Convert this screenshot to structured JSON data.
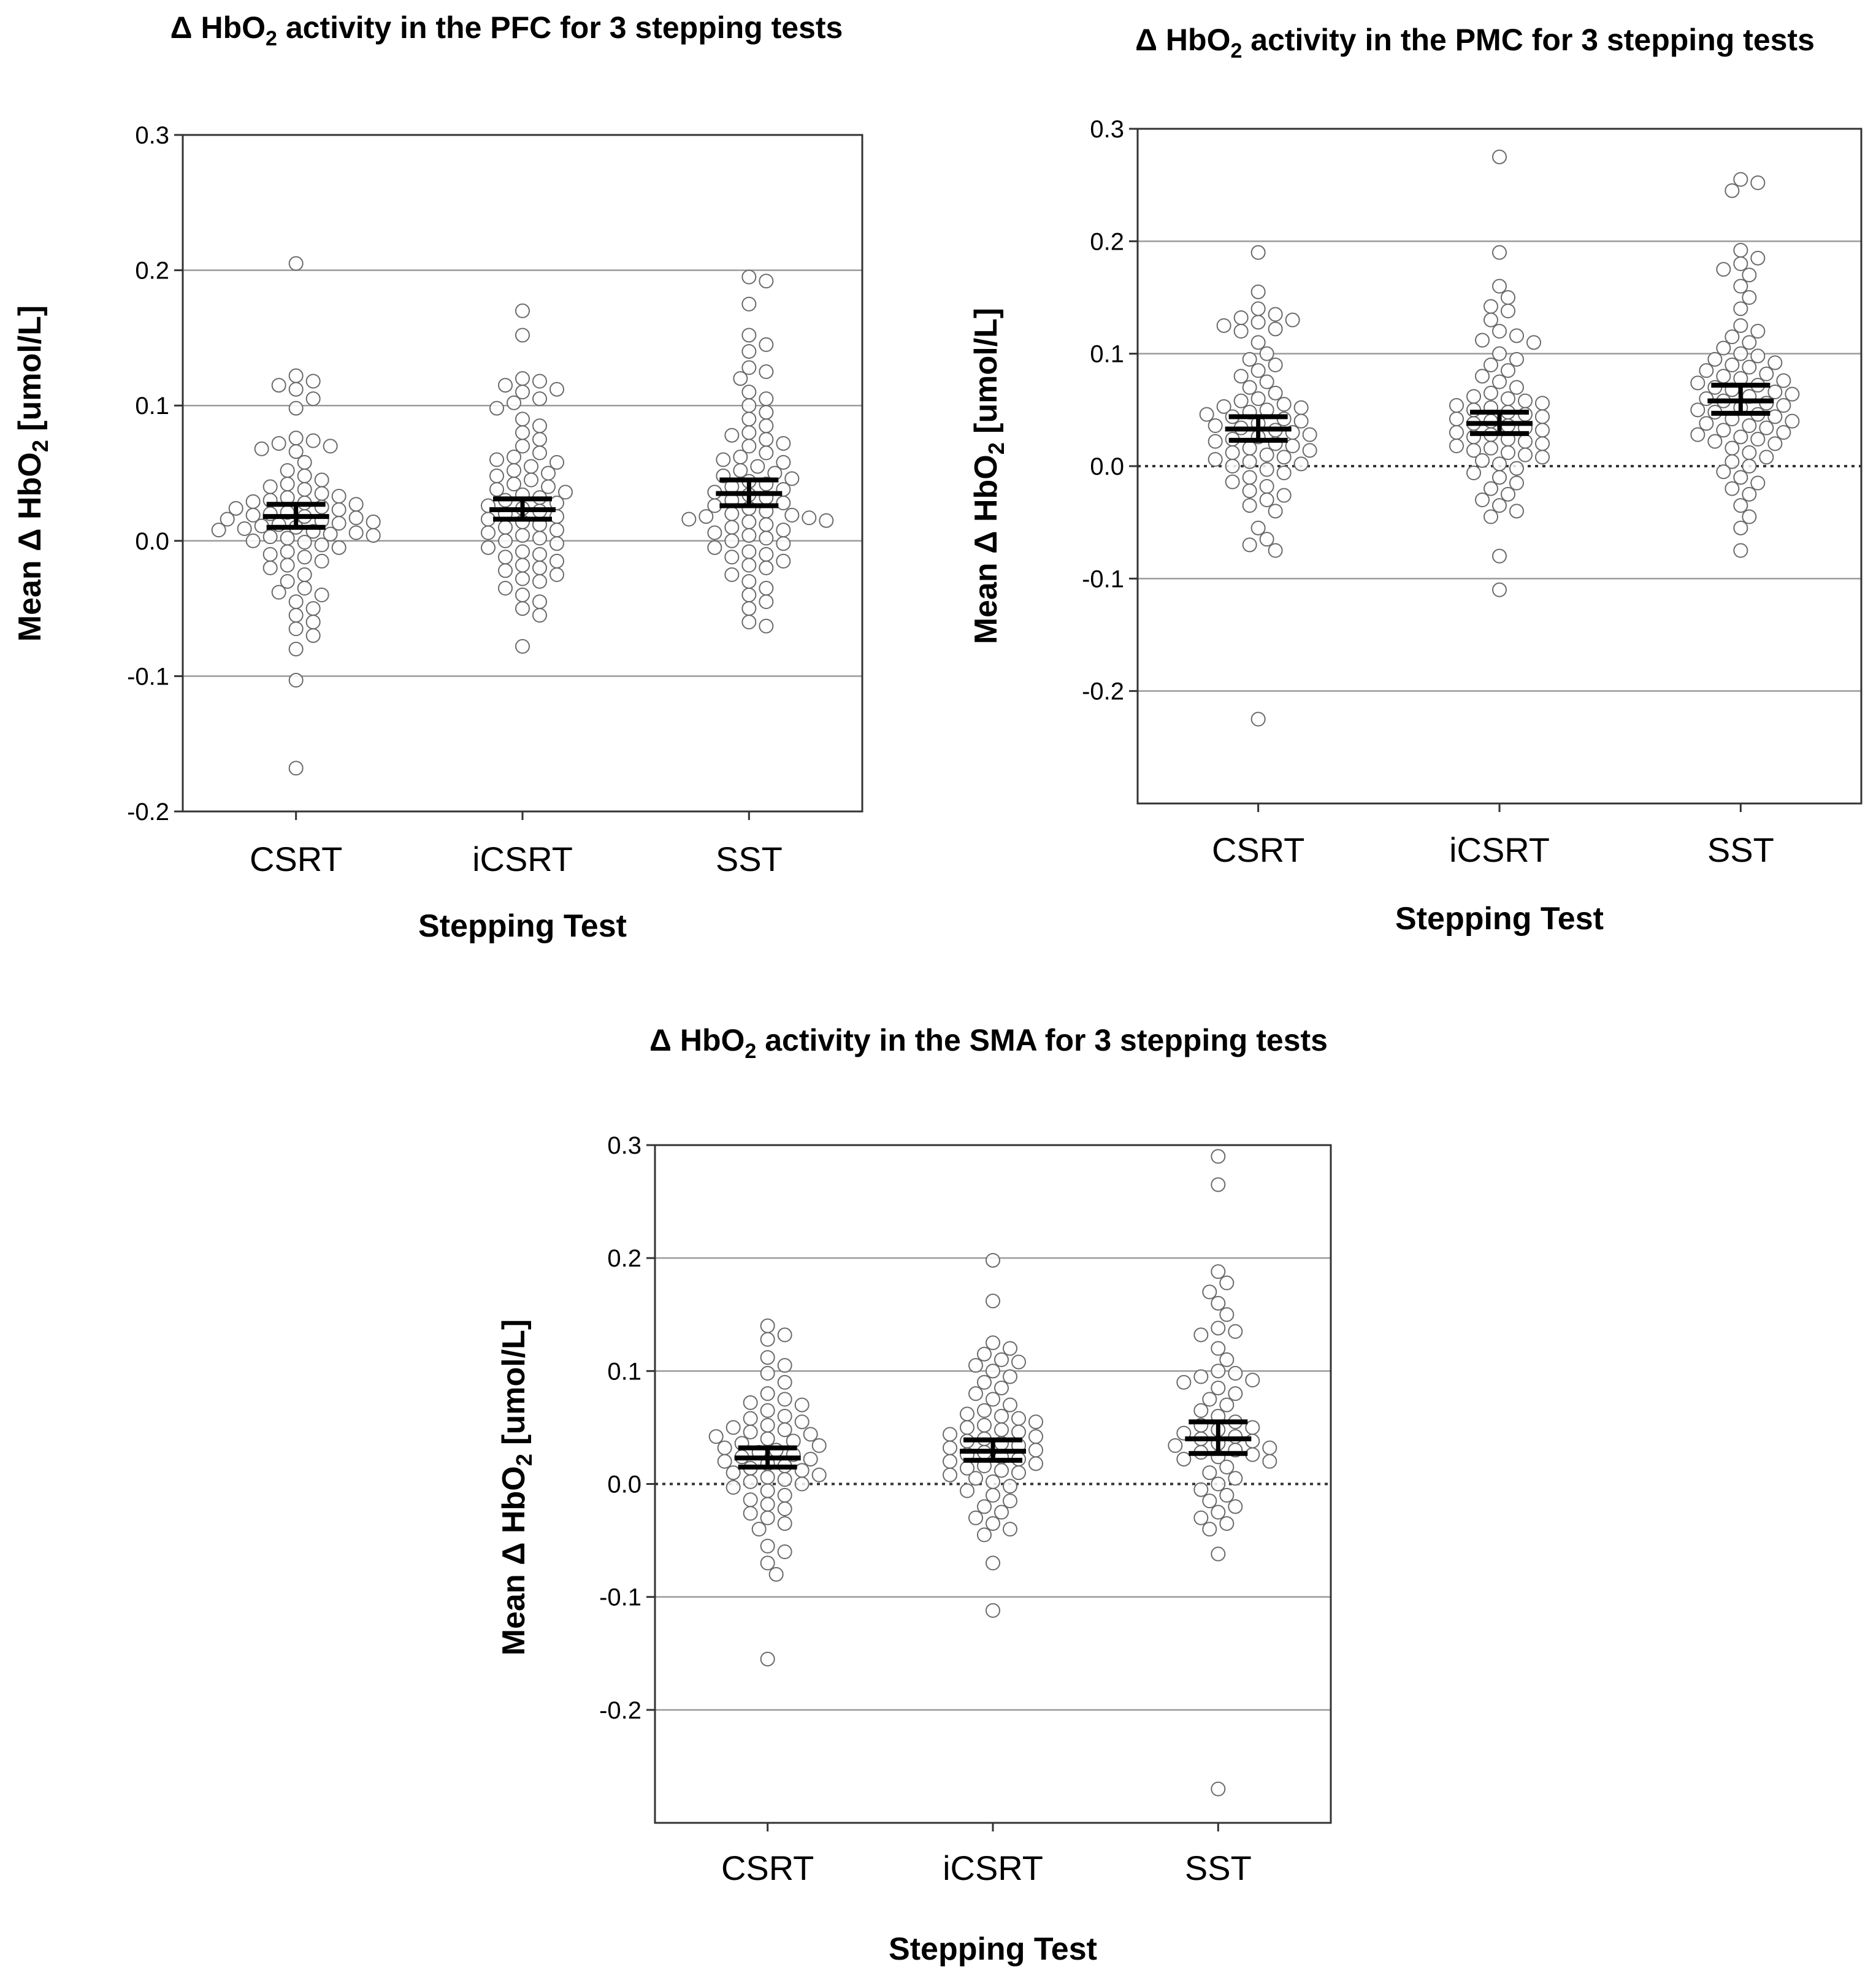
{
  "chart_data": [
    {
      "id": "pfc",
      "type": "scatter",
      "title": {
        "prefix": "Δ HbO",
        "sub": "2",
        "suffix": " activity in the PFC for 3 stepping tests"
      },
      "ylabel": {
        "prefix": "Mean Δ HbO",
        "sub": "2",
        "suffix": " [umol/L]"
      },
      "xlabel": "Stepping Test",
      "categories": [
        "CSRT",
        "iCSRT",
        "SST"
      ],
      "ylim": [
        -0.2,
        0.3
      ],
      "yticks": [
        -0.2,
        -0.1,
        0.0,
        0.1,
        0.2,
        0.3
      ],
      "ytick_labels": [
        "-0.2",
        "-0.1",
        "0.0",
        "0.1",
        "0.2",
        "0.3"
      ],
      "zero_line": "solid",
      "grid": true,
      "summary": [
        {
          "mean": 0.018,
          "ci": [
            0.01,
            0.027
          ]
        },
        {
          "mean": 0.023,
          "ci": [
            0.016,
            0.031
          ]
        },
        {
          "mean": 0.035,
          "ci": [
            0.026,
            0.045
          ]
        }
      ],
      "series": [
        {
          "name": "CSRT",
          "values": [
            0.205,
            0.122,
            0.118,
            0.115,
            0.112,
            0.105,
            0.098,
            0.076,
            0.074,
            0.072,
            0.07,
            0.068,
            0.066,
            0.058,
            0.052,
            0.048,
            0.045,
            0.042,
            0.04,
            0.038,
            0.035,
            0.033,
            0.032,
            0.03,
            0.029,
            0.028,
            0.027,
            0.025,
            0.024,
            0.023,
            0.021,
            0.02,
            0.019,
            0.018,
            0.017,
            0.016,
            0.015,
            0.014,
            0.013,
            0.012,
            0.011,
            0.01,
            0.009,
            0.008,
            0.007,
            0.006,
            0.005,
            0.004,
            0.003,
            0.002,
            0.0,
            -0.001,
            -0.003,
            -0.005,
            -0.008,
            -0.01,
            -0.012,
            -0.015,
            -0.018,
            -0.02,
            -0.025,
            -0.03,
            -0.035,
            -0.038,
            -0.04,
            -0.045,
            -0.05,
            -0.055,
            -0.06,
            -0.065,
            -0.07,
            -0.08,
            -0.103,
            -0.168
          ]
        },
        {
          "name": "iCSRT",
          "values": [
            0.17,
            0.152,
            0.12,
            0.118,
            0.115,
            0.112,
            0.11,
            0.105,
            0.102,
            0.098,
            0.09,
            0.085,
            0.08,
            0.075,
            0.07,
            0.065,
            0.062,
            0.06,
            0.058,
            0.055,
            0.052,
            0.05,
            0.048,
            0.045,
            0.042,
            0.04,
            0.038,
            0.036,
            0.034,
            0.032,
            0.03,
            0.028,
            0.026,
            0.024,
            0.022,
            0.02,
            0.018,
            0.016,
            0.014,
            0.012,
            0.01,
            0.008,
            0.006,
            0.004,
            0.002,
            0.0,
            -0.002,
            -0.005,
            -0.008,
            -0.01,
            -0.012,
            -0.015,
            -0.018,
            -0.02,
            -0.022,
            -0.025,
            -0.028,
            -0.03,
            -0.035,
            -0.04,
            -0.045,
            -0.05,
            -0.055,
            -0.078
          ]
        },
        {
          "name": "SST",
          "values": [
            0.195,
            0.192,
            0.175,
            0.152,
            0.145,
            0.14,
            0.128,
            0.125,
            0.12,
            0.11,
            0.105,
            0.1,
            0.095,
            0.09,
            0.085,
            0.08,
            0.078,
            0.075,
            0.072,
            0.07,
            0.065,
            0.062,
            0.06,
            0.058,
            0.055,
            0.052,
            0.05,
            0.048,
            0.046,
            0.044,
            0.042,
            0.04,
            0.038,
            0.036,
            0.034,
            0.032,
            0.03,
            0.028,
            0.026,
            0.024,
            0.022,
            0.02,
            0.019,
            0.018,
            0.017,
            0.016,
            0.015,
            0.014,
            0.012,
            0.01,
            0.008,
            0.006,
            0.004,
            0.002,
            0.0,
            -0.002,
            -0.005,
            -0.008,
            -0.01,
            -0.012,
            -0.015,
            -0.018,
            -0.02,
            -0.025,
            -0.03,
            -0.035,
            -0.04,
            -0.045,
            -0.05,
            -0.06,
            -0.063
          ]
        }
      ]
    },
    {
      "id": "pmc",
      "type": "scatter",
      "title": {
        "prefix": "Δ HbO",
        "sub": "2",
        "suffix": " activity in the PMC for 3 stepping tests"
      },
      "ylabel": {
        "prefix": "Mean Δ HbO",
        "sub": "2",
        "suffix": " [umol/L]"
      },
      "xlabel": "Stepping Test",
      "categories": [
        "CSRT",
        "iCSRT",
        "SST"
      ],
      "ylim": [
        -0.3,
        0.3
      ],
      "yticks": [
        -0.2,
        -0.1,
        0.0,
        0.1,
        0.2,
        0.3
      ],
      "ytick_labels": [
        "-0.2",
        "-0.1",
        "0.0",
        "0.1",
        "0.2",
        "0.3"
      ],
      "zero_line": "dotted",
      "grid": true,
      "summary": [
        {
          "mean": 0.033,
          "ci": [
            0.023,
            0.044
          ]
        },
        {
          "mean": 0.038,
          "ci": [
            0.029,
            0.048
          ]
        },
        {
          "mean": 0.058,
          "ci": [
            0.047,
            0.072
          ]
        }
      ],
      "series": [
        {
          "name": "CSRT",
          "values": [
            0.19,
            0.155,
            0.14,
            0.135,
            0.132,
            0.13,
            0.128,
            0.125,
            0.122,
            0.12,
            0.11,
            0.1,
            0.095,
            0.09,
            0.085,
            0.08,
            0.075,
            0.07,
            0.065,
            0.06,
            0.058,
            0.055,
            0.053,
            0.052,
            0.05,
            0.048,
            0.046,
            0.044,
            0.042,
            0.04,
            0.038,
            0.036,
            0.034,
            0.032,
            0.03,
            0.028,
            0.026,
            0.024,
            0.022,
            0.02,
            0.018,
            0.016,
            0.014,
            0.012,
            0.01,
            0.008,
            0.006,
            0.004,
            0.002,
            0.0,
            -0.003,
            -0.006,
            -0.01,
            -0.014,
            -0.018,
            -0.022,
            -0.026,
            -0.03,
            -0.035,
            -0.04,
            -0.055,
            -0.065,
            -0.07,
            -0.075,
            -0.225
          ]
        },
        {
          "name": "iCSRT",
          "values": [
            0.275,
            0.19,
            0.16,
            0.15,
            0.142,
            0.138,
            0.13,
            0.12,
            0.116,
            0.112,
            0.11,
            0.1,
            0.095,
            0.09,
            0.085,
            0.08,
            0.075,
            0.07,
            0.065,
            0.062,
            0.06,
            0.058,
            0.056,
            0.054,
            0.052,
            0.05,
            0.048,
            0.046,
            0.044,
            0.042,
            0.04,
            0.038,
            0.036,
            0.034,
            0.032,
            0.03,
            0.028,
            0.026,
            0.024,
            0.022,
            0.02,
            0.018,
            0.016,
            0.014,
            0.012,
            0.01,
            0.008,
            0.005,
            0.002,
            -0.002,
            -0.006,
            -0.01,
            -0.015,
            -0.02,
            -0.025,
            -0.03,
            -0.035,
            -0.04,
            -0.045,
            -0.08,
            -0.11
          ]
        },
        {
          "name": "SST",
          "values": [
            0.255,
            0.252,
            0.245,
            0.192,
            0.185,
            0.18,
            0.175,
            0.17,
            0.16,
            0.15,
            0.14,
            0.125,
            0.12,
            0.115,
            0.11,
            0.105,
            0.1,
            0.098,
            0.095,
            0.092,
            0.09,
            0.088,
            0.085,
            0.082,
            0.08,
            0.078,
            0.076,
            0.074,
            0.072,
            0.07,
            0.068,
            0.066,
            0.064,
            0.062,
            0.06,
            0.058,
            0.056,
            0.054,
            0.052,
            0.05,
            0.048,
            0.046,
            0.044,
            0.042,
            0.04,
            0.038,
            0.036,
            0.034,
            0.032,
            0.03,
            0.028,
            0.026,
            0.024,
            0.022,
            0.02,
            0.016,
            0.012,
            0.008,
            0.004,
            0.0,
            -0.005,
            -0.01,
            -0.015,
            -0.02,
            -0.025,
            -0.035,
            -0.045,
            -0.055,
            -0.075
          ]
        }
      ]
    },
    {
      "id": "sma",
      "type": "scatter",
      "title": {
        "prefix": "Δ HbO",
        "sub": "2",
        "suffix": " activity in the SMA for 3 stepping tests"
      },
      "ylabel": {
        "prefix": "Mean Δ HbO",
        "sub": "2",
        "suffix": " [umol/L]"
      },
      "xlabel": "Stepping Test",
      "categories": [
        "CSRT",
        "iCSRT",
        "SST"
      ],
      "ylim": [
        -0.3,
        0.3
      ],
      "yticks": [
        -0.2,
        -0.1,
        0.0,
        0.1,
        0.2,
        0.3
      ],
      "ytick_labels": [
        "-0.2",
        "-0.1",
        "0.0",
        "0.1",
        "0.2",
        "0.3"
      ],
      "zero_line": "dotted",
      "grid": true,
      "summary": [
        {
          "mean": 0.023,
          "ci": [
            0.015,
            0.032
          ]
        },
        {
          "mean": 0.029,
          "ci": [
            0.021,
            0.039
          ]
        },
        {
          "mean": 0.04,
          "ci": [
            0.027,
            0.055
          ]
        }
      ],
      "series": [
        {
          "name": "CSRT",
          "values": [
            0.14,
            0.132,
            0.128,
            0.112,
            0.105,
            0.098,
            0.09,
            0.08,
            0.075,
            0.072,
            0.07,
            0.065,
            0.06,
            0.058,
            0.055,
            0.052,
            0.05,
            0.048,
            0.046,
            0.044,
            0.042,
            0.04,
            0.038,
            0.036,
            0.034,
            0.032,
            0.03,
            0.028,
            0.026,
            0.024,
            0.022,
            0.02,
            0.018,
            0.016,
            0.014,
            0.012,
            0.01,
            0.008,
            0.006,
            0.004,
            0.002,
            0.0,
            -0.003,
            -0.006,
            -0.01,
            -0.014,
            -0.018,
            -0.022,
            -0.026,
            -0.03,
            -0.035,
            -0.04,
            -0.055,
            -0.06,
            -0.07,
            -0.08,
            -0.155
          ]
        },
        {
          "name": "iCSRT",
          "values": [
            0.198,
            0.162,
            0.125,
            0.12,
            0.115,
            0.11,
            0.108,
            0.105,
            0.1,
            0.095,
            0.09,
            0.085,
            0.08,
            0.075,
            0.07,
            0.065,
            0.062,
            0.06,
            0.058,
            0.055,
            0.052,
            0.05,
            0.048,
            0.046,
            0.044,
            0.042,
            0.04,
            0.038,
            0.036,
            0.034,
            0.032,
            0.03,
            0.028,
            0.026,
            0.024,
            0.022,
            0.02,
            0.018,
            0.016,
            0.014,
            0.012,
            0.01,
            0.008,
            0.005,
            0.002,
            -0.002,
            -0.006,
            -0.01,
            -0.015,
            -0.02,
            -0.025,
            -0.03,
            -0.035,
            -0.04,
            -0.045,
            -0.07,
            -0.112
          ]
        },
        {
          "name": "SST",
          "values": [
            0.29,
            0.265,
            0.188,
            0.178,
            0.17,
            0.16,
            0.15,
            0.138,
            0.135,
            0.132,
            0.12,
            0.11,
            0.1,
            0.098,
            0.095,
            0.092,
            0.09,
            0.085,
            0.08,
            0.075,
            0.07,
            0.065,
            0.06,
            0.055,
            0.052,
            0.05,
            0.048,
            0.045,
            0.042,
            0.04,
            0.038,
            0.036,
            0.034,
            0.032,
            0.03,
            0.028,
            0.026,
            0.024,
            0.022,
            0.02,
            0.015,
            0.01,
            0.005,
            0.0,
            -0.005,
            -0.01,
            -0.015,
            -0.02,
            -0.025,
            -0.03,
            -0.035,
            -0.04,
            -0.062,
            -0.27
          ]
        }
      ]
    }
  ]
}
